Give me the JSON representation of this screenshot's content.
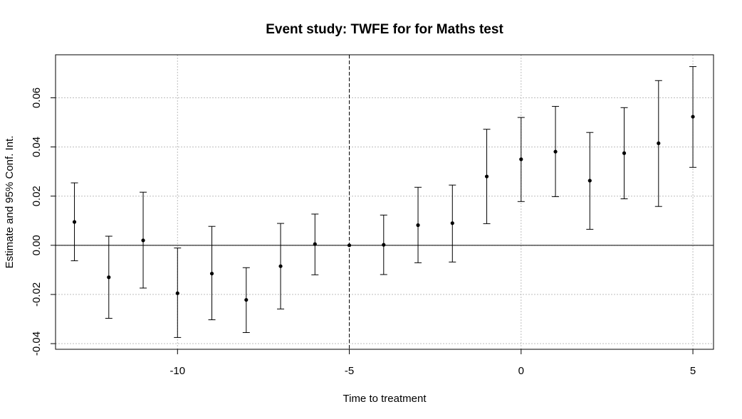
{
  "chart_data": {
    "type": "scatter",
    "title": "Event study: TWFE for for Maths test",
    "xlabel": "Time to treatment",
    "ylabel": "Estimate and 95% Conf. Int.",
    "xlim": [
      -13.55,
      5.6
    ],
    "ylim": [
      -0.0423,
      0.0775
    ],
    "xticks": [
      -10,
      -5,
      0,
      5
    ],
    "xtick_labels": [
      "-10",
      "-5",
      "0",
      "5"
    ],
    "yticks": [
      -0.04,
      -0.02,
      0.0,
      0.02,
      0.04,
      0.06
    ],
    "ytick_labels": [
      "-0.04",
      "-0.02",
      "0.00",
      "0.02",
      "0.04",
      "0.06"
    ],
    "grid": true,
    "reference_hline": 0,
    "reference_vline": -5,
    "series": [
      {
        "x": [
          -13,
          -12,
          -11,
          -10,
          -9,
          -8,
          -7,
          -6,
          -5,
          -4,
          -3,
          -2,
          -1,
          0,
          1,
          2,
          3,
          4,
          5
        ],
        "y": [
          0.0095,
          -0.013,
          0.002,
          -0.0195,
          -0.0115,
          -0.0222,
          -0.0085,
          0.0005,
          0.0,
          0.0002,
          0.0082,
          0.009,
          0.028,
          0.035,
          0.0381,
          0.0263,
          0.0375,
          0.0415,
          0.0523
        ],
        "lower": [
          -0.0063,
          -0.0297,
          -0.0174,
          -0.0375,
          -0.0303,
          -0.0355,
          -0.0259,
          -0.012,
          0.0,
          -0.0119,
          -0.0071,
          -0.0068,
          0.0088,
          0.0178,
          0.0198,
          0.0065,
          0.0189,
          0.0158,
          0.0317
        ],
        "upper": [
          0.0254,
          0.0037,
          0.0216,
          -0.0011,
          0.0077,
          -0.0091,
          0.0089,
          0.0127,
          0.0,
          0.0123,
          0.0236,
          0.0245,
          0.0472,
          0.052,
          0.0565,
          0.0459,
          0.056,
          0.067,
          0.0727
        ]
      }
    ]
  }
}
